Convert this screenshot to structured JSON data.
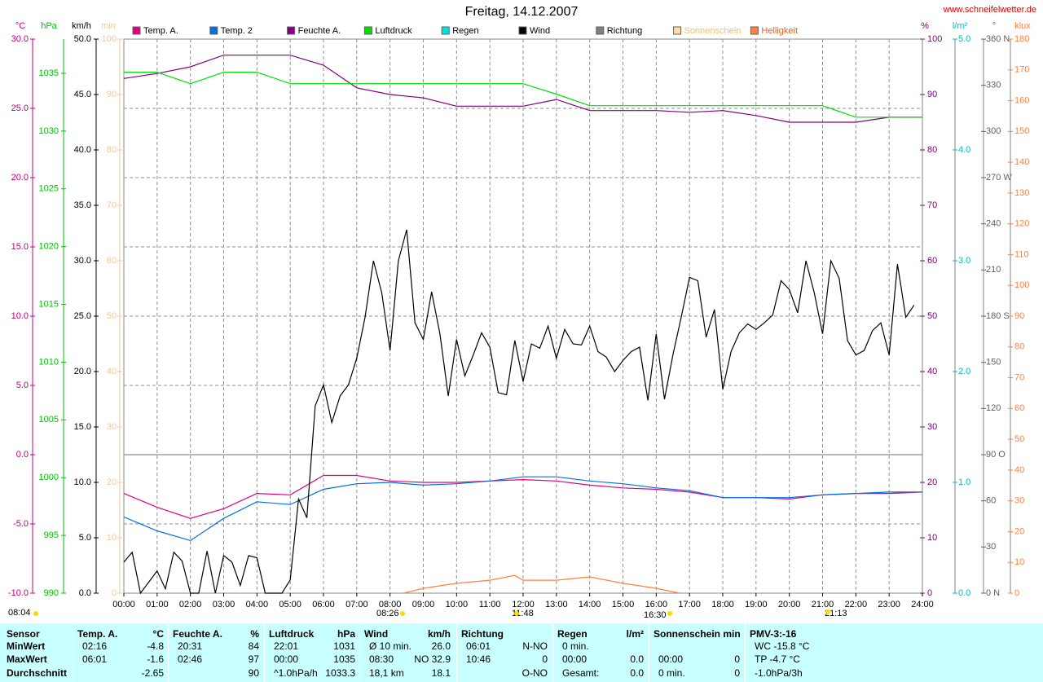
{
  "chart_data": {
    "type": "line",
    "title": "Freitag, 14.12.2007",
    "source": "www.schneifelwetter.de",
    "grid": true,
    "xlim": [
      0,
      24
    ],
    "xticks": [
      {
        "value": 0,
        "label": "00:00"
      },
      {
        "value": 1,
        "label": "01:00"
      },
      {
        "value": 2,
        "label": "02:00"
      },
      {
        "value": 3,
        "label": "03:00"
      },
      {
        "value": 4,
        "label": "04:00"
      },
      {
        "value": 5,
        "label": "05:00"
      },
      {
        "value": 6,
        "label": "06:00"
      },
      {
        "value": 7,
        "label": "07:00"
      },
      {
        "value": 8,
        "label": "08:00"
      },
      {
        "value": 9,
        "label": "09:00"
      },
      {
        "value": 10,
        "label": "10:00"
      },
      {
        "value": 11,
        "label": "11:00"
      },
      {
        "value": 12,
        "label": "12:00"
      },
      {
        "value": 13,
        "label": "13:00"
      },
      {
        "value": 14,
        "label": "14:00"
      },
      {
        "value": 15,
        "label": "15:00"
      },
      {
        "value": 16,
        "label": "16:00"
      },
      {
        "value": 17,
        "label": "17:00"
      },
      {
        "value": 18,
        "label": "18:00"
      },
      {
        "value": 19,
        "label": "19:00"
      },
      {
        "value": 20,
        "label": "20:00"
      },
      {
        "value": 21,
        "label": "21:00"
      },
      {
        "value": 22,
        "label": "22:00"
      },
      {
        "value": 23,
        "label": "23:00"
      },
      {
        "value": 24,
        "label": "24:00"
      }
    ],
    "axes": [
      {
        "label": "°C",
        "color": "#c0007f",
        "lim": [
          -10,
          30
        ],
        "ticks": [
          {
            "value": -10,
            "label": "-10.0"
          },
          {
            "value": -5,
            "label": "-5.0"
          },
          {
            "value": 0,
            "label": "0.0"
          },
          {
            "value": 5,
            "label": "5.0"
          },
          {
            "value": 10,
            "label": "10.0"
          },
          {
            "value": 15,
            "label": "15.0"
          },
          {
            "value": 20,
            "label": "20.0"
          },
          {
            "value": 25,
            "label": "25.0"
          },
          {
            "value": 30,
            "label": "30.0"
          }
        ]
      },
      {
        "label": "hPa",
        "color": "#00c000",
        "lim": [
          990,
          1037.96
        ],
        "ticks": [
          990,
          995,
          1000,
          1005,
          1010,
          1015,
          1020,
          1025,
          1030,
          1035
        ]
      },
      {
        "label": "km/h",
        "color": "#000000",
        "lim": [
          0,
          50
        ],
        "ticks": [
          {
            "value": 0,
            "label": "0.0"
          },
          {
            "value": 5,
            "label": "5.0"
          },
          {
            "value": 10,
            "label": "10.0"
          },
          {
            "value": 15,
            "label": "15.0"
          },
          {
            "value": 20,
            "label": "20.0"
          },
          {
            "value": 25,
            "label": "25.0"
          },
          {
            "value": 30,
            "label": "30.0"
          },
          {
            "value": 35,
            "label": "35.0"
          },
          {
            "value": 40,
            "label": "40.0"
          },
          {
            "value": 45,
            "label": "45.0"
          },
          {
            "value": 50,
            "label": "50.0"
          }
        ]
      },
      {
        "label": "min",
        "color": "#f0c89a",
        "lim": [
          0,
          100
        ],
        "ticks": [
          0,
          10,
          20,
          30,
          40,
          50,
          60,
          70,
          80,
          90,
          100
        ]
      },
      {
        "label": "%",
        "color": "#800080",
        "lim": [
          0,
          100
        ],
        "ticks": [
          0,
          10,
          20,
          30,
          40,
          50,
          60,
          70,
          80,
          90,
          100
        ]
      },
      {
        "label": "l/m²",
        "color": "#00c0c0",
        "lim": [
          0,
          5
        ],
        "ticks": [
          {
            "value": 0,
            "label": "0.0"
          },
          {
            "value": 1,
            "label": "1.0"
          },
          {
            "value": 2,
            "label": "2.0"
          },
          {
            "value": 3,
            "label": "3.0"
          },
          {
            "value": 4,
            "label": "4.0"
          },
          {
            "value": 5,
            "label": "5.0"
          }
        ]
      },
      {
        "label": "°",
        "color": "#606060",
        "lim": [
          0,
          360
        ],
        "ticks": [
          {
            "value": 0,
            "label": "0 N"
          },
          30,
          60,
          {
            "value": 90,
            "label": "90 O"
          },
          120,
          150,
          {
            "value": 180,
            "label": "180 S"
          },
          210,
          240,
          {
            "value": 270,
            "label": "270 W"
          },
          300,
          330,
          {
            "value": 360,
            "label": "360 N"
          }
        ]
      },
      {
        "label": "klux",
        "color": "#ff8040",
        "lim": [
          0,
          180
        ],
        "ticks": [
          0,
          10,
          20,
          30,
          40,
          50,
          60,
          70,
          80,
          90,
          100,
          110,
          120,
          130,
          140,
          150,
          160,
          170,
          180
        ]
      }
    ],
    "series": [
      {
        "name": "Temp. A.",
        "color": "#e0007f",
        "axis": 0,
        "x": [
          0,
          1,
          2,
          3,
          4,
          5,
          6,
          7,
          8,
          9,
          10,
          11,
          12,
          13,
          14,
          15,
          16,
          17,
          18,
          19,
          20,
          21,
          22,
          23,
          24
        ],
        "values": [
          -2.8,
          -3.8,
          -4.6,
          -3.9,
          -2.8,
          -2.9,
          -1.5,
          -1.5,
          -1.9,
          -2.0,
          -2.0,
          -1.9,
          -1.8,
          -1.9,
          -2.2,
          -2.4,
          -2.5,
          -2.7,
          -3.1,
          -3.1,
          -3.2,
          -2.9,
          -2.8,
          -2.8,
          -2.7
        ]
      },
      {
        "name": "Temp. 2",
        "color": "#0070e0",
        "axis": 0,
        "x": [
          0,
          1,
          2,
          3,
          4,
          5,
          6,
          7,
          8,
          9,
          10,
          11,
          12,
          13,
          14,
          15,
          16,
          17,
          18,
          19,
          20,
          21,
          22,
          23,
          24
        ],
        "values": [
          -4.5,
          -5.5,
          -6.2,
          -4.6,
          -3.4,
          -3.6,
          -2.5,
          -2.1,
          -2.0,
          -2.2,
          -2.1,
          -1.9,
          -1.6,
          -1.6,
          -1.9,
          -2.1,
          -2.4,
          -2.6,
          -3.1,
          -3.1,
          -3.1,
          -2.9,
          -2.8,
          -2.7,
          -2.7
        ]
      },
      {
        "name": "Feuchte A.",
        "color": "#800080",
        "axis": 4,
        "x": [
          0,
          1,
          2,
          3,
          4,
          5,
          6,
          7,
          8,
          9,
          10,
          11,
          12,
          13,
          14,
          15,
          16,
          17,
          18,
          19,
          20,
          21,
          22,
          23,
          24
        ],
        "values": [
          92.9,
          93.8,
          95,
          97.1,
          97.1,
          97.1,
          95.3,
          91.2,
          90,
          89.4,
          87.9,
          87.9,
          87.9,
          89.1,
          87.1,
          87.1,
          87.1,
          86.8,
          87.1,
          86.2,
          85,
          85,
          85,
          85.9,
          85.9
        ]
      },
      {
        "name": "Luftdruck",
        "color": "#00e000",
        "axis": 1,
        "x": [
          0,
          1,
          2,
          3,
          4,
          5,
          6,
          7,
          8,
          9,
          10,
          11,
          12,
          13,
          14,
          15,
          16,
          17,
          18,
          19,
          20,
          21,
          22,
          23,
          24
        ],
        "values": [
          1035.1,
          1035.1,
          1034.1,
          1035.1,
          1035.1,
          1034.1,
          1034.1,
          1034.1,
          1034.1,
          1034.1,
          1034.1,
          1034.1,
          1034.1,
          1033.2,
          1032.2,
          1032.2,
          1032.2,
          1032.2,
          1032.2,
          1032.2,
          1032.2,
          1032.2,
          1031.2,
          1031.2,
          1031.2
        ]
      },
      {
        "name": "Regen",
        "color": "#00e0e0"
      },
      {
        "name": "Wind",
        "color": "#000000",
        "axis": 2,
        "x": [
          0,
          0.25,
          0.5,
          0.75,
          1,
          1.25,
          1.5,
          1.75,
          2,
          2.25,
          2.5,
          2.75,
          3,
          3.25,
          3.5,
          3.75,
          4,
          4.25,
          4.5,
          4.75,
          5,
          5.25,
          5.5,
          5.75,
          6,
          6.25,
          6.5,
          6.75,
          7,
          7.25,
          7.5,
          7.75,
          8,
          8.25,
          8.5,
          8.75,
          9,
          9.25,
          9.5,
          9.75,
          10,
          10.25,
          10.5,
          10.75,
          11,
          11.25,
          11.5,
          11.75,
          12,
          12.25,
          12.5,
          12.75,
          13,
          13.25,
          13.5,
          13.75,
          14,
          14.25,
          14.5,
          14.75,
          15,
          15.25,
          15.5,
          15.75,
          16,
          16.25,
          16.5,
          16.75,
          17,
          17.25,
          17.5,
          17.75,
          18,
          18.25,
          18.5,
          18.75,
          19,
          19.25,
          19.5,
          19.75,
          20,
          20.25,
          20.5,
          20.75,
          21,
          21.25,
          21.5,
          21.75,
          22,
          22.25,
          22.5,
          22.75,
          23,
          23.25,
          23.5,
          23.75
        ],
        "values": [
          2.8,
          3.7,
          0,
          1.0,
          2,
          0.4,
          3.7,
          2.9,
          0,
          0,
          3.8,
          0,
          3.4,
          2.8,
          0.7,
          3.4,
          3.2,
          0,
          0,
          0,
          1.2,
          8.5,
          6.8,
          16.9,
          18.8,
          15.4,
          17.8,
          18.8,
          21.2,
          24.9,
          30,
          27.1,
          21.9,
          30,
          32.8,
          24.4,
          22.9,
          27.2,
          23.4,
          17.8,
          22.9,
          19.6,
          21.5,
          23.5,
          22.2,
          18.1,
          17.9,
          22.8,
          19.1,
          22.5,
          22.1,
          24.1,
          21.2,
          23.8,
          22.5,
          22.4,
          24.1,
          21.8,
          21.3,
          20,
          21,
          21.8,
          22.2,
          17.4,
          23.4,
          17.5,
          21.5,
          24.9,
          28.5,
          28.2,
          23.1,
          25.6,
          18.4,
          21.8,
          23.5,
          24.3,
          23.8,
          24.4,
          25.1,
          28.2,
          27.4,
          25.3,
          30,
          27.1,
          23.4,
          30,
          28.4,
          22.8,
          21.5,
          21.9,
          23.7,
          24.4,
          21.5,
          29.7,
          24.9,
          26
        ]
      },
      {
        "name": "Richtung",
        "color": "#808080"
      },
      {
        "name": "Sonnenschein",
        "color": "#ffe0a0"
      },
      {
        "name": "Helligkeit",
        "color": "#ff8040",
        "axis": 7,
        "x": [
          8.4,
          9,
          10,
          11,
          11.75,
          12,
          13,
          14,
          15,
          16,
          16.7
        ],
        "values": [
          0,
          1.6,
          3.2,
          4.2,
          5.8,
          4.2,
          4.2,
          5.3,
          3.2,
          1.6,
          0
        ]
      }
    ],
    "annotations": [
      "08:04",
      "08:26",
      "11:48",
      "16:30",
      "21:13"
    ]
  },
  "table": {
    "columns": [
      {
        "title": "Sensor"
      },
      {
        "title": "Temp. A.",
        "unit": "°C"
      },
      {
        "title": "Feuchte A.",
        "unit": "%"
      },
      {
        "title": "Luftdruck",
        "unit": "hPa"
      },
      {
        "title": "Wind",
        "unit": "km/h"
      },
      {
        "title": "Richtung"
      },
      {
        "title": "Regen",
        "unit": "l/m²"
      },
      {
        "title": "Sonnenschein min"
      },
      {
        "title": "PMV-3:-16"
      }
    ],
    "rows": [
      {
        "label": "MinWert",
        "cells": [
          {
            "l": "02:16",
            "r": "-4.8"
          },
          {
            "l": "20:31",
            "r": "84"
          },
          {
            "l": "22:01",
            "r": "1031"
          },
          {
            "l": "Ø 10 min.",
            "r": "26.0"
          },
          {
            "l": "06:01",
            "r": "N-NO"
          },
          {
            "l": "0 min."
          },
          {},
          {
            "l": "WC -15.8 °C"
          }
        ]
      },
      {
        "label": "MaxWert",
        "cells": [
          {
            "l": "06:01",
            "r": "-1.6"
          },
          {
            "l": "02:46",
            "r": "97"
          },
          {
            "l": "00:00",
            "r": "1035"
          },
          {
            "l": "08:30",
            "r": "NO 32.9"
          },
          {
            "l": "10:46",
            "r": "0"
          },
          {
            "l": "00:00",
            "r": "0.0"
          },
          {
            "l": "00:00",
            "r": "0"
          },
          {
            "l": "TP -4.7 °C"
          }
        ]
      },
      {
        "label": "Durchschnitt",
        "cells": [
          {
            "r": "-2.65"
          },
          {
            "r": "90"
          },
          {
            "l": "^1.0hPa/h",
            "r": "1033.3"
          },
          {
            "l": "18,1 km",
            "r": "18.1"
          },
          {
            "r": "O-NO"
          },
          {
            "l": "Gesamt:",
            "r": "0.0"
          },
          {
            "l": "0 min.",
            "r": "0"
          },
          {
            "l": "-1.0hPa/3h"
          }
        ]
      }
    ]
  }
}
